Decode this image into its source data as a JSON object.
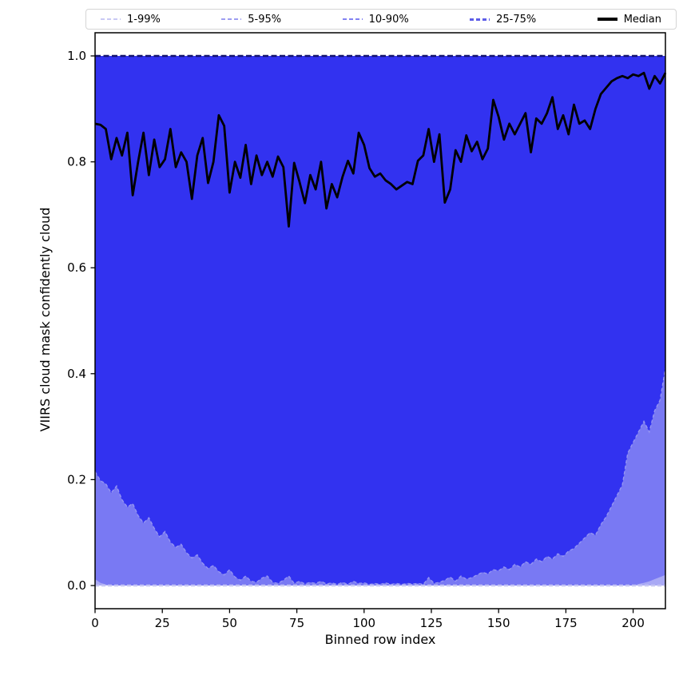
{
  "figure": {
    "background": "#ffffff",
    "spine_color": "#000000"
  },
  "legend": {
    "items": [
      {
        "label": "1-99%",
        "color": "#c9c9f4",
        "style": "dashed",
        "thickness": 2
      },
      {
        "label": "5-95%",
        "color": "#9d9df1",
        "style": "dashed",
        "thickness": 2
      },
      {
        "label": "10-90%",
        "color": "#8282f2",
        "style": "dashed",
        "thickness": 2
      },
      {
        "label": "25-75%",
        "color": "#5d5de8",
        "style": "dashed",
        "thickness": 3
      },
      {
        "label": "Median",
        "color": "#000000",
        "style": "solid",
        "thickness": 3.5
      }
    ]
  },
  "chart_data": {
    "type": "area",
    "title": "",
    "xlabel": "Binned row index",
    "ylabel": "VIIRS cloud mask confidently cloud",
    "xlim": [
      0,
      212
    ],
    "ylim": [
      -0.044,
      1.044
    ],
    "x_ticks": [
      0,
      25,
      50,
      75,
      100,
      125,
      150,
      175,
      200
    ],
    "y_ticks": [
      0.0,
      0.2,
      0.4,
      0.6,
      0.8,
      1.0
    ],
    "grid": false,
    "legend_position": "top-expanded",
    "x_start": 0,
    "x_step": 2,
    "bands": [
      {
        "label": "1-99%",
        "lower": 0,
        "upper": 1,
        "fill": "#d9d9fa"
      },
      {
        "label": "5-95%",
        "lower": 0,
        "upper": 1,
        "fill": "#a9a9f5"
      },
      {
        "label": "10-90%",
        "upper": 1,
        "fill": "#7979f3",
        "lower": {
          "default": 0,
          "points": {
            "0": 0.012,
            "2": 0.005,
            "4": 0.002,
            "202": 0.003,
            "204": 0.005,
            "206": 0.008,
            "208": 0.012,
            "210": 0.016,
            "212": 0.02
          }
        }
      },
      {
        "label": "25-75%",
        "upper": 1,
        "fill": "#3232f0",
        "lower": [
          0.215,
          0.198,
          0.192,
          0.175,
          0.188,
          0.162,
          0.148,
          0.155,
          0.132,
          0.118,
          0.128,
          0.108,
          0.092,
          0.102,
          0.082,
          0.072,
          0.078,
          0.062,
          0.052,
          0.058,
          0.042,
          0.032,
          0.038,
          0.026,
          0.02,
          0.03,
          0.016,
          0.01,
          0.018,
          0.008,
          0.006,
          0.014,
          0.018,
          0.006,
          0.004,
          0.01,
          0.018,
          0.004,
          0.008,
          0.003,
          0.006,
          0.004,
          0.008,
          0.003,
          0.005,
          0.002,
          0.006,
          0.002,
          0.008,
          0.004,
          0.005,
          0.002,
          0.004,
          0.002,
          0.005,
          0.002,
          0.004,
          0.002,
          0.004,
          0.003,
          0.004,
          0.002,
          0.015,
          0.004,
          0.006,
          0.01,
          0.016,
          0.008,
          0.018,
          0.012,
          0.015,
          0.02,
          0.025,
          0.022,
          0.03,
          0.028,
          0.035,
          0.03,
          0.04,
          0.035,
          0.045,
          0.04,
          0.05,
          0.045,
          0.055,
          0.05,
          0.06,
          0.055,
          0.065,
          0.07,
          0.08,
          0.09,
          0.1,
          0.095,
          0.115,
          0.13,
          0.15,
          0.17,
          0.19,
          0.25,
          0.27,
          0.29,
          0.31,
          0.29,
          0.33,
          0.35,
          0.41
        ]
      }
    ],
    "median": [
      0.872,
      0.87,
      0.862,
      0.805,
      0.845,
      0.812,
      0.855,
      0.737,
      0.8,
      0.855,
      0.775,
      0.842,
      0.79,
      0.805,
      0.862,
      0.79,
      0.818,
      0.8,
      0.73,
      0.812,
      0.845,
      0.76,
      0.8,
      0.888,
      0.868,
      0.742,
      0.8,
      0.77,
      0.832,
      0.758,
      0.812,
      0.775,
      0.8,
      0.772,
      0.81,
      0.79,
      0.678,
      0.798,
      0.762,
      0.722,
      0.775,
      0.748,
      0.8,
      0.712,
      0.758,
      0.733,
      0.772,
      0.802,
      0.778,
      0.855,
      0.832,
      0.788,
      0.772,
      0.778,
      0.765,
      0.758,
      0.748,
      0.755,
      0.762,
      0.758,
      0.802,
      0.812,
      0.862,
      0.8,
      0.852,
      0.723,
      0.748,
      0.822,
      0.8,
      0.85,
      0.82,
      0.838,
      0.805,
      0.825,
      0.917,
      0.885,
      0.842,
      0.872,
      0.852,
      0.872,
      0.892,
      0.818,
      0.882,
      0.872,
      0.892,
      0.922,
      0.862,
      0.888,
      0.852,
      0.908,
      0.872,
      0.878,
      0.862,
      0.9,
      0.928,
      0.94,
      0.952,
      0.958,
      0.962,
      0.958,
      0.965,
      0.962,
      0.968,
      0.938,
      0.962,
      0.948,
      0.968
    ],
    "style": {
      "median_line": {
        "color": "#000000",
        "width": 2.8
      },
      "upper_boundary_line": {
        "color": "#15156e",
        "width": 2.4,
        "dash": "7 3.5"
      },
      "zero_boundary_line": {
        "color": "#c6c6f3",
        "width": 2.6,
        "dash": "5 3"
      },
      "p25_edge_line": {
        "color": "#9595f2",
        "width": 1.4,
        "dash": "4 3"
      }
    }
  }
}
